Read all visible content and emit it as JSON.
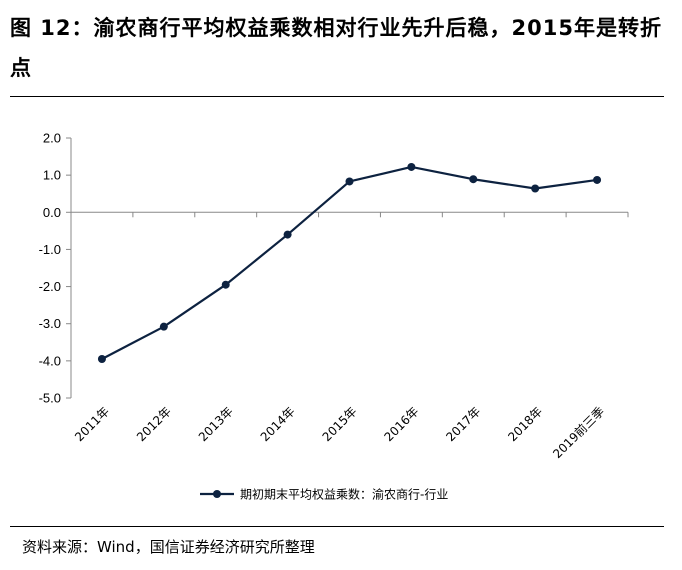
{
  "header": {
    "title": "图 12：渝农商行平均权益乘数相对行业先升后稳，2015年是转折点"
  },
  "footer": {
    "source": "资料来源：Wind，国信证券经济研究所整理"
  },
  "chart_data": {
    "type": "line",
    "categories": [
      "2011年",
      "2012年",
      "2013年",
      "2014年",
      "2015年",
      "2016年",
      "2017年",
      "2018年",
      "2019前三季"
    ],
    "series": [
      {
        "name": "期初期末平均权益乘数：渝农商行-行业",
        "values": [
          -3.95,
          -3.08,
          -1.95,
          -0.6,
          0.83,
          1.22,
          0.89,
          0.64,
          0.87
        ],
        "color": "#0d2240"
      }
    ],
    "yticks": [
      "2.0",
      "1.0",
      "0.0",
      "-1.0",
      "-2.0",
      "-3.0",
      "-4.0",
      "-5.0"
    ],
    "ylim": [
      -5,
      2
    ],
    "xlabel": "",
    "ylabel": "",
    "grid": false,
    "legend_position": "bottom"
  }
}
